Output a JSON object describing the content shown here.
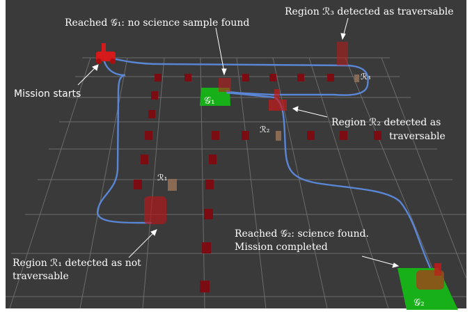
{
  "annotations": {
    "g1_reached": "Reached 𝒢₁: no science sample found",
    "r3_detected": "Region ℛ₃ detected as traversable",
    "mission_starts": "Mission starts",
    "r2_detected_line1": "Region ℛ₂ detected as",
    "r2_detected_line2": "traversable",
    "g2_reached_line1": "Reached 𝒢₂: science found.",
    "g2_reached_line2": "Mission completed",
    "r1_detected_line1": "Region ℛ₁ detected as not",
    "r1_detected_line2": "traversable"
  },
  "markers": {
    "g1": "𝒢₁",
    "g2": "𝒢₂",
    "r1": "ℛ₁",
    "r2": "ℛ₂",
    "r3": "ℛ₃"
  },
  "colors": {
    "background": "#393939",
    "grid": "#6b6b6b",
    "path": "#5a86d6",
    "goal": "#18b018",
    "obstacle": "#7a0c12",
    "region": "#8a6a52",
    "robot": "#d41a1a"
  }
}
